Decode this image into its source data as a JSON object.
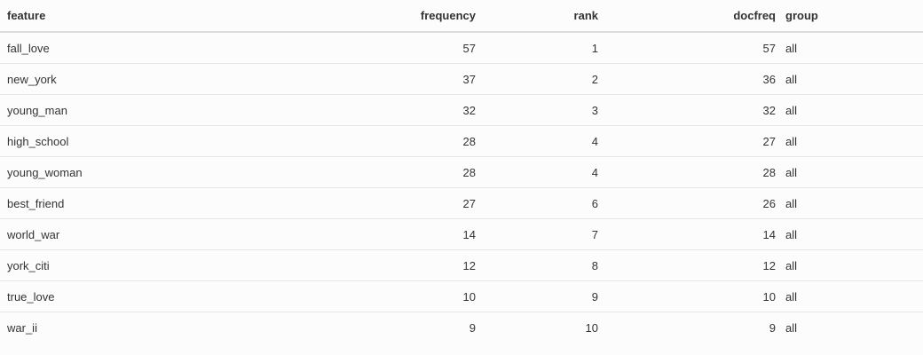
{
  "table": {
    "columns": [
      "feature",
      "frequency",
      "rank",
      "docfreq",
      "group"
    ],
    "rows": [
      [
        "fall_love",
        "57",
        "1",
        "57",
        "all"
      ],
      [
        "new_york",
        "37",
        "2",
        "36",
        "all"
      ],
      [
        "young_man",
        "32",
        "3",
        "32",
        "all"
      ],
      [
        "high_school",
        "28",
        "4",
        "27",
        "all"
      ],
      [
        "young_woman",
        "28",
        "4",
        "28",
        "all"
      ],
      [
        "best_friend",
        "27",
        "6",
        "26",
        "all"
      ],
      [
        "world_war",
        "14",
        "7",
        "14",
        "all"
      ],
      [
        "york_citi",
        "12",
        "8",
        "12",
        "all"
      ],
      [
        "true_love",
        "10",
        "9",
        "10",
        "all"
      ],
      [
        "war_ii",
        "9",
        "10",
        "9",
        "all"
      ]
    ]
  },
  "colors": {
    "background": "#fcfcfc",
    "text": "#333333",
    "header_rule": "#dddddd",
    "row_rule": "#e6e6e6"
  }
}
